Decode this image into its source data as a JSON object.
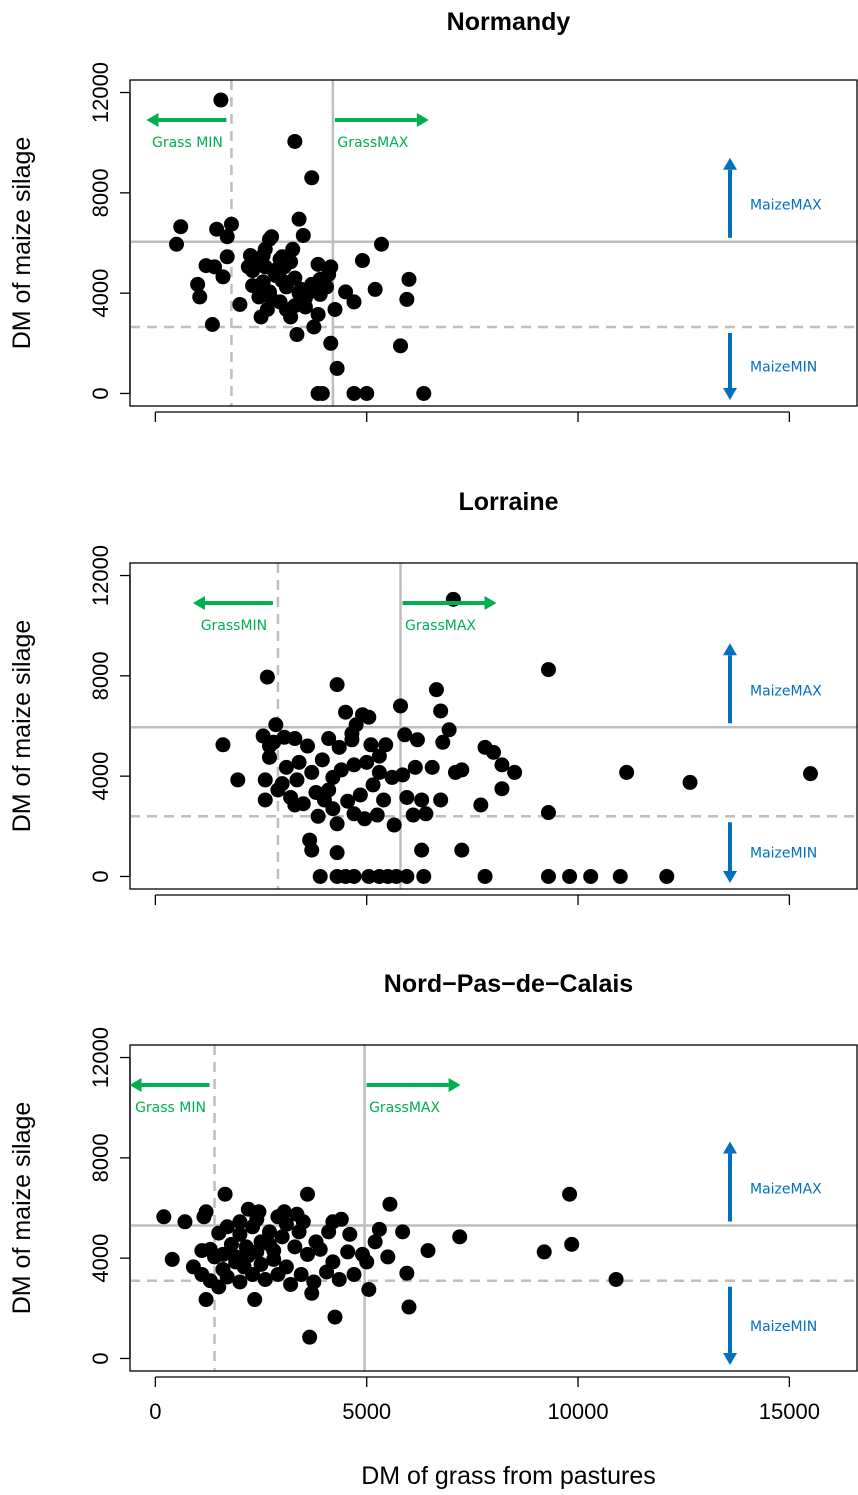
{
  "chart_data": [
    {
      "type": "scatter",
      "title": "Normandy",
      "ylabel": "DM of maize silage",
      "xlabel": "",
      "xlim": [
        -600,
        16600
      ],
      "ylim": [
        -500,
        12500
      ],
      "x_ticks": [
        0,
        5000,
        10000,
        15000
      ],
      "x_tick_labels_visible": false,
      "y_ticks": [
        0,
        4000,
        8000,
        12000
      ],
      "y_tick_labels": [
        "0",
        "4000",
        "8000",
        "12000"
      ],
      "grid": false,
      "thresholds": {
        "grass_min": 1800,
        "grass_max": 4200,
        "maize_min": 2650,
        "maize_max": 6050
      },
      "annotations": {
        "grass_min": "Grass MIN",
        "grass_max": "GrassMAX",
        "maize_max": "MaizeMAX",
        "maize_min": "MaizeMIN"
      },
      "colors": {
        "grass_annotation": "#00b050",
        "maize_annotation": "#0070c0",
        "threshold_line": "#bebebe",
        "points": "#000000"
      },
      "points": [
        [
          1550,
          11700
        ],
        [
          3300,
          10050
        ],
        [
          3700,
          8600
        ],
        [
          3400,
          6950
        ],
        [
          600,
          6650
        ],
        [
          500,
          5950
        ],
        [
          1450,
          6550
        ],
        [
          1800,
          6750
        ],
        [
          1700,
          6250
        ],
        [
          2700,
          6150
        ],
        [
          2750,
          6250
        ],
        [
          3500,
          6300
        ],
        [
          5350,
          5950
        ],
        [
          4900,
          5300
        ],
        [
          1200,
          5100
        ],
        [
          1400,
          5050
        ],
        [
          1700,
          5450
        ],
        [
          2250,
          5500
        ],
        [
          2550,
          5500
        ],
        [
          2950,
          5350
        ],
        [
          3250,
          5750
        ],
        [
          3850,
          5150
        ],
        [
          4150,
          5050
        ],
        [
          1000,
          4350
        ],
        [
          1050,
          3850
        ],
        [
          1600,
          4650
        ],
        [
          2000,
          3550
        ],
        [
          2300,
          4300
        ],
        [
          2550,
          4450
        ],
        [
          2850,
          4700
        ],
        [
          3000,
          4500
        ],
        [
          3300,
          4600
        ],
        [
          3700,
          4350
        ],
        [
          4050,
          4250
        ],
        [
          4500,
          4050
        ],
        [
          5200,
          4150
        ],
        [
          6000,
          4550
        ],
        [
          5950,
          3750
        ],
        [
          4700,
          3650
        ],
        [
          4250,
          3350
        ],
        [
          3850,
          3150
        ],
        [
          3550,
          3450
        ],
        [
          3200,
          3050
        ],
        [
          2650,
          3350
        ],
        [
          2500,
          3050
        ],
        [
          3350,
          2350
        ],
        [
          3750,
          2650
        ],
        [
          1350,
          2750
        ],
        [
          2400,
          5200
        ],
        [
          2600,
          5050
        ],
        [
          2800,
          4900
        ],
        [
          2500,
          4150
        ],
        [
          2700,
          4050
        ],
        [
          3100,
          4250
        ],
        [
          3450,
          4150
        ],
        [
          3650,
          4050
        ],
        [
          3900,
          3950
        ],
        [
          2450,
          3850
        ],
        [
          2750,
          3750
        ],
        [
          2950,
          3650
        ],
        [
          3100,
          3350
        ],
        [
          3300,
          3500
        ],
        [
          3550,
          3800
        ],
        [
          3400,
          4000
        ],
        [
          3050,
          5050
        ],
        [
          2600,
          5750
        ],
        [
          2300,
          4900
        ],
        [
          2200,
          5050
        ],
        [
          3000,
          5450
        ],
        [
          3200,
          5250
        ],
        [
          3900,
          4550
        ],
        [
          4100,
          4750
        ],
        [
          4150,
          2000
        ],
        [
          4300,
          1000
        ],
        [
          5800,
          1900
        ],
        [
          3850,
          0
        ],
        [
          3950,
          0
        ],
        [
          4700,
          0
        ],
        [
          5000,
          0
        ],
        [
          6350,
          0
        ]
      ]
    },
    {
      "type": "scatter",
      "title": "Lorraine",
      "ylabel": "DM of maize silage",
      "xlabel": "",
      "xlim": [
        -600,
        16600
      ],
      "ylim": [
        -500,
        12500
      ],
      "x_ticks": [
        0,
        5000,
        10000,
        15000
      ],
      "x_tick_labels_visible": false,
      "y_ticks": [
        0,
        4000,
        8000,
        12000
      ],
      "y_tick_labels": [
        "0",
        "4000",
        "8000",
        "12000"
      ],
      "grid": false,
      "thresholds": {
        "grass_min": 2900,
        "grass_max": 5800,
        "maize_min": 2400,
        "maize_max": 5950
      },
      "annotations": {
        "grass_min": "GrassMIN",
        "grass_max": "GrassMAX",
        "maize_max": "MaizeMAX",
        "maize_min": "MaizeMIN"
      },
      "colors": {
        "grass_annotation": "#00b050",
        "maize_annotation": "#0070c0",
        "threshold_line": "#bebebe",
        "points": "#000000"
      },
      "points": [
        [
          7050,
          11050
        ],
        [
          2650,
          7950
        ],
        [
          4300,
          7650
        ],
        [
          9300,
          8250
        ],
        [
          6650,
          7450
        ],
        [
          6750,
          6600
        ],
        [
          5800,
          6800
        ],
        [
          4500,
          6550
        ],
        [
          4900,
          6450
        ],
        [
          5050,
          6350
        ],
        [
          4750,
          6050
        ],
        [
          2850,
          6050
        ],
        [
          1600,
          5250
        ],
        [
          2550,
          5600
        ],
        [
          2700,
          5200
        ],
        [
          3050,
          5550
        ],
        [
          3300,
          5500
        ],
        [
          3600,
          5200
        ],
        [
          4100,
          5500
        ],
        [
          4350,
          5150
        ],
        [
          4650,
          5450
        ],
        [
          5100,
          5250
        ],
        [
          5450,
          5250
        ],
        [
          5900,
          5650
        ],
        [
          6200,
          5450
        ],
        [
          6800,
          5350
        ],
        [
          6950,
          5850
        ],
        [
          7800,
          5150
        ],
        [
          8000,
          4950
        ],
        [
          8200,
          4450
        ],
        [
          8500,
          4150
        ],
        [
          7100,
          4150
        ],
        [
          7250,
          4250
        ],
        [
          6550,
          4350
        ],
        [
          6150,
          4350
        ],
        [
          5850,
          4050
        ],
        [
          5300,
          4150
        ],
        [
          5000,
          4550
        ],
        [
          4700,
          4450
        ],
        [
          4400,
          4250
        ],
        [
          4200,
          3950
        ],
        [
          3700,
          4150
        ],
        [
          3400,
          4550
        ],
        [
          3100,
          4350
        ],
        [
          2700,
          4750
        ],
        [
          2600,
          3850
        ],
        [
          1950,
          3850
        ],
        [
          2900,
          3450
        ],
        [
          3200,
          3150
        ],
        [
          3500,
          2900
        ],
        [
          3800,
          3350
        ],
        [
          4100,
          3450
        ],
        [
          4550,
          3000
        ],
        [
          4850,
          3250
        ],
        [
          5150,
          3650
        ],
        [
          5400,
          3050
        ],
        [
          5950,
          3150
        ],
        [
          6300,
          3050
        ],
        [
          6750,
          3050
        ],
        [
          7700,
          2850
        ],
        [
          8200,
          3500
        ],
        [
          9300,
          2550
        ],
        [
          2600,
          3050
        ],
        [
          3300,
          2850
        ],
        [
          3850,
          2400
        ],
        [
          4300,
          2100
        ],
        [
          4700,
          2500
        ],
        [
          4950,
          2300
        ],
        [
          5250,
          2450
        ],
        [
          5650,
          2050
        ],
        [
          6100,
          2450
        ],
        [
          6400,
          2500
        ],
        [
          3650,
          1450
        ],
        [
          3700,
          1050
        ],
        [
          4300,
          950
        ],
        [
          6300,
          1050
        ],
        [
          7250,
          1050
        ],
        [
          3900,
          0
        ],
        [
          4300,
          0
        ],
        [
          4500,
          0
        ],
        [
          4700,
          0
        ],
        [
          5050,
          0
        ],
        [
          5300,
          0
        ],
        [
          5500,
          0
        ],
        [
          5700,
          0
        ],
        [
          5950,
          0
        ],
        [
          6350,
          0
        ],
        [
          7800,
          0
        ],
        [
          9300,
          0
        ],
        [
          9800,
          0
        ],
        [
          10300,
          0
        ],
        [
          11000,
          0
        ],
        [
          12100,
          0
        ],
        [
          11150,
          4150
        ],
        [
          12650,
          3750
        ],
        [
          15500,
          4100
        ],
        [
          3950,
          4650
        ],
        [
          4650,
          5700
        ],
        [
          5300,
          4800
        ],
        [
          3000,
          3700
        ],
        [
          3350,
          3850
        ],
        [
          4000,
          3050
        ],
        [
          5600,
          3950
        ],
        [
          4200,
          2700
        ],
        [
          2800,
          5350
        ]
      ]
    },
    {
      "type": "scatter",
      "title": "Nord−Pas−de−Calais",
      "ylabel": "DM of maize silage",
      "xlabel": "DM of grass from pastures",
      "xlim": [
        -600,
        16600
      ],
      "ylim": [
        -500,
        12500
      ],
      "x_ticks": [
        0,
        5000,
        10000,
        15000
      ],
      "x_tick_labels": [
        "0",
        "5000",
        "10000",
        "15000"
      ],
      "y_ticks": [
        0,
        4000,
        8000,
        12000
      ],
      "y_tick_labels": [
        "0",
        "4000",
        "8000",
        "12000"
      ],
      "grid": false,
      "thresholds": {
        "grass_min": 1400,
        "grass_max": 4950,
        "maize_min": 3100,
        "maize_max": 5300
      },
      "annotations": {
        "grass_min": "Grass MIN",
        "grass_max": "GrassMAX",
        "maize_max": "MaizeMAX",
        "maize_min": "MaizeMIN"
      },
      "colors": {
        "grass_annotation": "#00b050",
        "maize_annotation": "#0070c0",
        "threshold_line": "#bebebe",
        "points": "#000000"
      },
      "points": [
        [
          200,
          5650
        ],
        [
          700,
          5450
        ],
        [
          1150,
          5650
        ],
        [
          1200,
          5850
        ],
        [
          1650,
          6550
        ],
        [
          2200,
          5950
        ],
        [
          2450,
          5850
        ],
        [
          3600,
          6550
        ],
        [
          5550,
          6150
        ],
        [
          9800,
          6550
        ],
        [
          3050,
          5850
        ],
        [
          3350,
          5750
        ],
        [
          4400,
          5550
        ],
        [
          5300,
          5150
        ],
        [
          5850,
          5050
        ],
        [
          7200,
          4850
        ],
        [
          9200,
          4250
        ],
        [
          9850,
          4550
        ],
        [
          10900,
          3150
        ],
        [
          6450,
          4300
        ],
        [
          5950,
          3400
        ],
        [
          6000,
          2050
        ],
        [
          5050,
          2750
        ],
        [
          4250,
          1650
        ],
        [
          3650,
          850
        ],
        [
          3700,
          2600
        ],
        [
          2350,
          2350
        ],
        [
          1200,
          2350
        ],
        [
          400,
          3950
        ],
        [
          900,
          3650
        ],
        [
          1300,
          4350
        ],
        [
          1600,
          4150
        ],
        [
          1900,
          4050
        ],
        [
          2100,
          3650
        ],
        [
          2400,
          4250
        ],
        [
          2700,
          4550
        ],
        [
          3000,
          4850
        ],
        [
          3300,
          4450
        ],
        [
          3600,
          4150
        ],
        [
          3900,
          4350
        ],
        [
          4200,
          3850
        ],
        [
          4550,
          4250
        ],
        [
          4900,
          4150
        ],
        [
          5500,
          4050
        ],
        [
          1700,
          3250
        ],
        [
          2000,
          3050
        ],
        [
          2300,
          3350
        ],
        [
          2600,
          3150
        ],
        [
          2900,
          3350
        ],
        [
          3200,
          2950
        ],
        [
          3450,
          3350
        ],
        [
          3750,
          3050
        ],
        [
          4050,
          3450
        ],
        [
          4350,
          3150
        ],
        [
          4700,
          3350
        ],
        [
          1500,
          2850
        ],
        [
          2000,
          4950
        ],
        [
          2300,
          5250
        ],
        [
          2700,
          5050
        ],
        [
          3100,
          5350
        ],
        [
          1800,
          4550
        ],
        [
          2150,
          4450
        ],
        [
          2500,
          3750
        ],
        [
          2800,
          3950
        ],
        [
          3100,
          3650
        ],
        [
          1600,
          3550
        ],
        [
          1900,
          3850
        ],
        [
          2200,
          4100
        ],
        [
          2500,
          4650
        ],
        [
          2800,
          4300
        ],
        [
          3400,
          5050
        ],
        [
          3800,
          4650
        ],
        [
          4100,
          5050
        ],
        [
          4600,
          4950
        ],
        [
          5000,
          3850
        ],
        [
          5200,
          4650
        ],
        [
          1400,
          4050
        ],
        [
          1100,
          3350
        ],
        [
          1700,
          5250
        ],
        [
          2000,
          5450
        ],
        [
          2400,
          5550
        ],
        [
          2900,
          5650
        ],
        [
          3500,
          5450
        ],
        [
          4200,
          5450
        ],
        [
          1500,
          5000
        ],
        [
          1300,
          3100
        ],
        [
          1100,
          4300
        ]
      ]
    }
  ]
}
